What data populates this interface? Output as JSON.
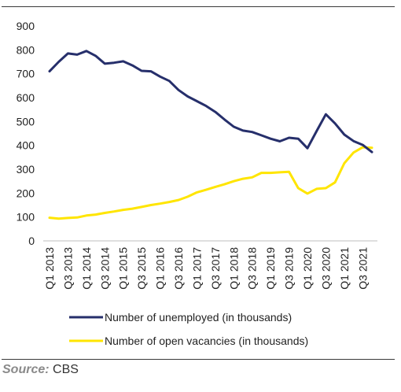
{
  "chart_data": {
    "type": "line",
    "title": "",
    "xlabel": "",
    "ylabel": "",
    "ylim": [
      0,
      900
    ],
    "yticks": [
      0,
      100,
      200,
      300,
      400,
      500,
      600,
      700,
      800,
      900
    ],
    "x": [
      "Q1 2013",
      "Q2 2013",
      "Q3 2013",
      "Q4 2013",
      "Q1 2014",
      "Q2 2014",
      "Q3 2014",
      "Q4 2014",
      "Q1 2015",
      "Q2 2015",
      "Q3 2015",
      "Q4 2015",
      "Q1 2016",
      "Q2 2016",
      "Q3 2016",
      "Q4 2016",
      "Q1 2017",
      "Q2 2017",
      "Q3 2017",
      "Q4 2017",
      "Q1 2018",
      "Q2 2018",
      "Q3 2018",
      "Q4 2018",
      "Q1 2019",
      "Q2 2019",
      "Q3 2019",
      "Q4 2019",
      "Q1 2020",
      "Q2 2020",
      "Q3 2020",
      "Q4 2020",
      "Q1 2021",
      "Q2 2021",
      "Q3 2021",
      "Q4 2021"
    ],
    "tick_labels": [
      "Q1 2013",
      "Q3 2013",
      "Q1 2014",
      "Q3 2014",
      "Q1 2015",
      "Q3 2015",
      "Q1 2016",
      "Q3 2016",
      "Q1 2017",
      "Q3 2017",
      "Q1 2018",
      "Q3 2018",
      "Q1 2019",
      "Q3 2019",
      "Q1 2020",
      "Q3 2020",
      "Q1 2021",
      "Q3 2021"
    ],
    "grid": false,
    "legend_position": "bottom",
    "series": [
      {
        "name": "Number of unemployed (in thousands)",
        "color": "#262f6b",
        "values": [
          710,
          750,
          785,
          780,
          795,
          775,
          742,
          746,
          752,
          735,
          712,
          710,
          688,
          670,
          632,
          605,
          585,
          565,
          540,
          508,
          478,
          462,
          456,
          442,
          428,
          417,
          432,
          428,
          388,
          460,
          530,
          492,
          445,
          418,
          402,
          372
        ]
      },
      {
        "name": "Number of open vacancies (in thousands)",
        "color": "#ffe500",
        "values": [
          97,
          93,
          96,
          98,
          106,
          110,
          117,
          123,
          130,
          135,
          142,
          150,
          156,
          163,
          171,
          185,
          203,
          214,
          226,
          237,
          250,
          260,
          266,
          285,
          285,
          287,
          289,
          221,
          198,
          218,
          221,
          245,
          325,
          370,
          392,
          390
        ]
      }
    ]
  },
  "source": {
    "label": "Source:",
    "text": " CBS"
  }
}
